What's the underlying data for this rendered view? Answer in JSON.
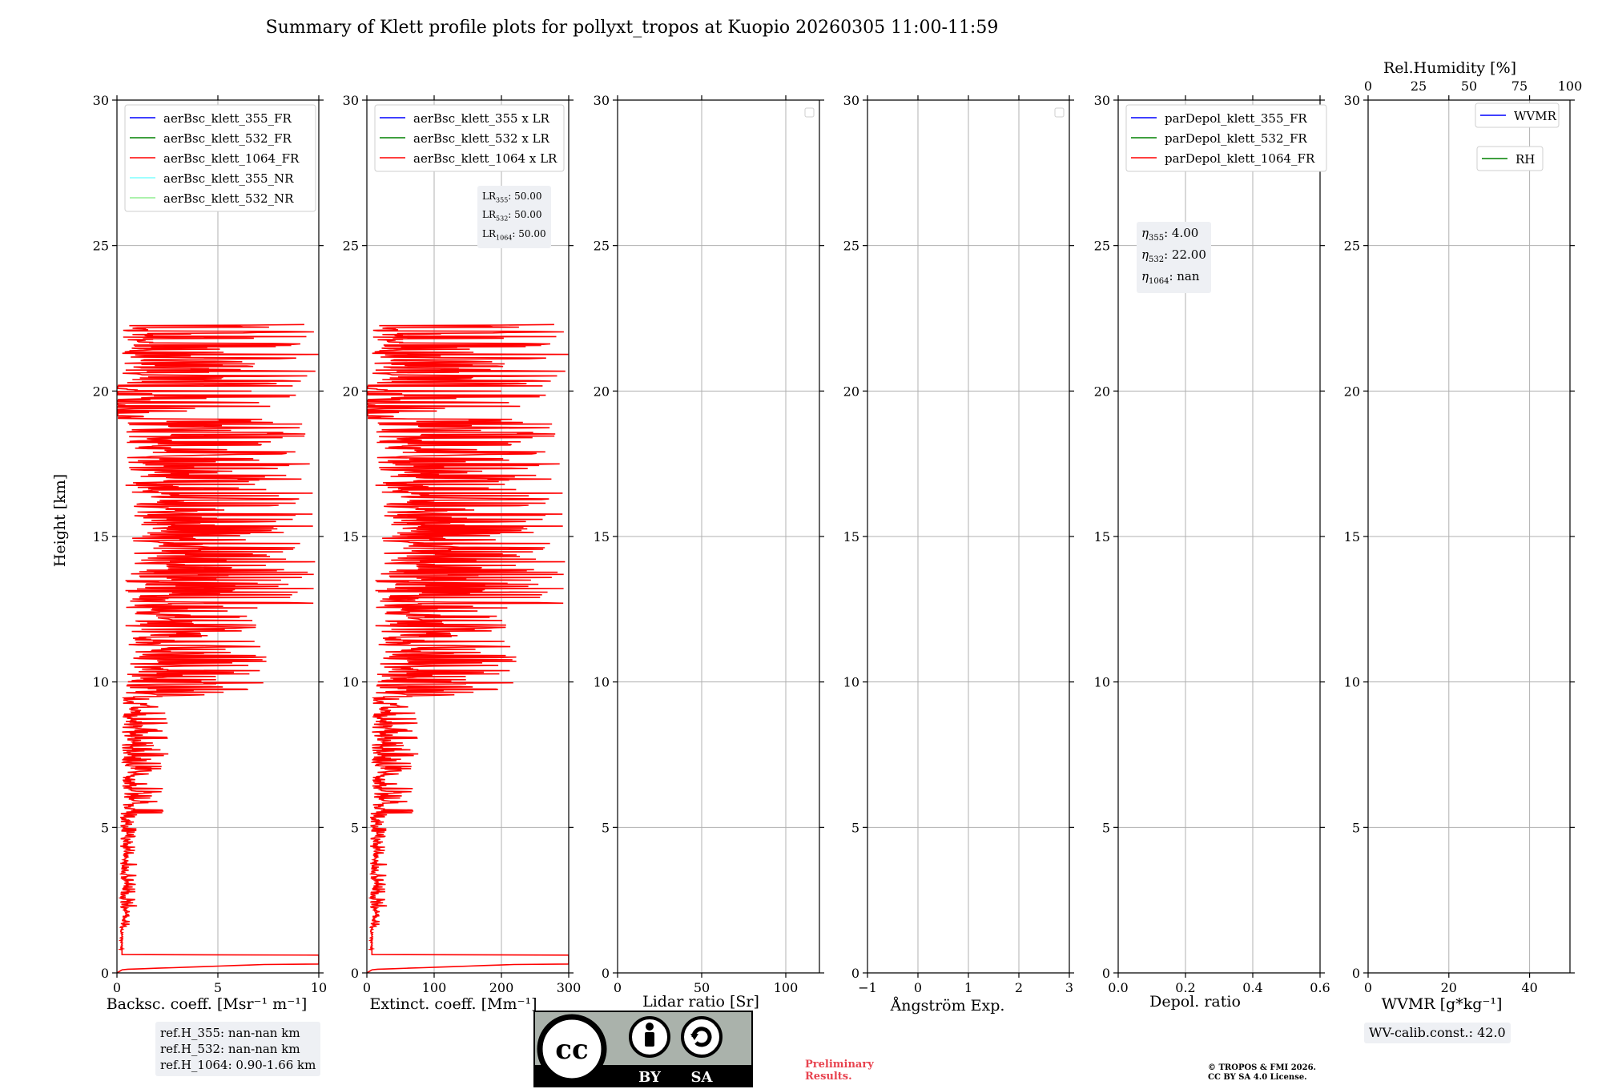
{
  "title": "Summary of Klett profile plots for pollyxt_tropos at Kuopio 20260305 11:00-11:59",
  "y_axis_label": "Height [km]",
  "chart_data": [
    {
      "type": "line",
      "xlabel": "Backsc. coeff. [Msr⁻¹ m⁻¹]",
      "xlim": [
        0,
        10
      ],
      "xticks": [
        0,
        5,
        10
      ],
      "ylim": [
        0,
        30
      ],
      "yticks": [
        0,
        5,
        10,
        15,
        20,
        25,
        30
      ],
      "legend": [
        "aerBsc_klett_355_FR",
        "aerBsc_klett_532_FR",
        "aerBsc_klett_1064_FR",
        "aerBsc_klett_355_NR",
        "aerBsc_klett_532_NR"
      ],
      "legend_colors": [
        "#0000ff",
        "#008000",
        "#ff0000",
        "#7fffff",
        "#90ee90"
      ],
      "series": [
        {
          "name": "aerBsc_klett_1064_FR",
          "color": "#ff0000",
          "profile": "noisy-backscatter-1064",
          "max_value": 10
        }
      ]
    },
    {
      "type": "line",
      "xlabel": "Extinct. coeff. [Mm⁻¹]",
      "xlim": [
        0,
        300
      ],
      "xticks": [
        0,
        100,
        200,
        300
      ],
      "ylim": [
        0,
        30
      ],
      "yticks": [
        0,
        5,
        10,
        15,
        20,
        25,
        30
      ],
      "legend": [
        "aerBsc_klett_355 x LR",
        "aerBsc_klett_532 x LR",
        "aerBsc_klett_1064 x LR"
      ],
      "legend_colors": [
        "#0000ff",
        "#008000",
        "#ff0000"
      ],
      "series": [
        {
          "name": "aerBsc_klett_1064 x LR",
          "color": "#ff0000",
          "profile": "noisy-extinction-1064",
          "max_value": 300
        }
      ]
    },
    {
      "type": "line",
      "xlabel": "Lidar ratio [Sr]",
      "xlim": [
        0,
        120
      ],
      "xticks": [
        0,
        50,
        100
      ],
      "ylim": [
        0,
        30
      ],
      "yticks": [
        0,
        5,
        10,
        15,
        20,
        25,
        30
      ],
      "legend": [],
      "series": []
    },
    {
      "type": "line",
      "xlabel": "Ångström Exp.",
      "xlim": [
        -1,
        3
      ],
      "xticks": [
        -1,
        0,
        1,
        2,
        3
      ],
      "ylim": [
        0,
        30
      ],
      "yticks": [
        0,
        5,
        10,
        15,
        20,
        25,
        30
      ],
      "legend": [],
      "series": []
    },
    {
      "type": "line",
      "xlabel": "Depol. ratio",
      "xlim": [
        0,
        0.6
      ],
      "xticks": [
        0.0,
        0.2,
        0.4,
        0.6
      ],
      "ylim": [
        0,
        30
      ],
      "yticks": [
        0,
        5,
        10,
        15,
        20,
        25,
        30
      ],
      "legend": [
        "parDepol_klett_355_FR",
        "parDepol_klett_532_FR",
        "parDepol_klett_1064_FR"
      ],
      "legend_colors": [
        "#0000ff",
        "#008000",
        "#ff0000"
      ],
      "series": []
    },
    {
      "type": "line",
      "xlabel": "WVMR [g*kg⁻¹]",
      "xlim": [
        0,
        50
      ],
      "xticks": [
        0,
        20,
        40
      ],
      "ylim": [
        0,
        30
      ],
      "yticks": [
        0,
        5,
        10,
        15,
        20,
        25,
        30
      ],
      "top_axis_label": "Rel.Humidity [%]",
      "top_xlim": [
        0,
        100
      ],
      "top_xticks": [
        0,
        25,
        50,
        75,
        100
      ],
      "legend": [
        "WVMR",
        "RH"
      ],
      "legend_colors": [
        "#0000ff",
        "#008000"
      ],
      "series": []
    }
  ],
  "annotations": {
    "lidar_ratios": [
      "LR355: 50.00",
      "LR532: 50.00",
      "LR1064: 50.00"
    ],
    "lr": {
      "l355": "LR",
      "s355": "355",
      "v355": ": 50.00",
      "l532": "LR",
      "s532": "532",
      "v532": ": 50.00",
      "l1064": "LR",
      "s1064": "1064",
      "v1064": ": 50.00"
    },
    "eta": {
      "s355": "355",
      "v355": ": 4.00",
      "s532": "532",
      "v532": ": 22.00",
      "s1064": "1064",
      "v1064": ": nan"
    },
    "ref_heights": [
      "ref.H_355: nan-nan km",
      "ref.H_532: nan-nan km",
      "ref.H_1064: 0.90-1.66 km"
    ],
    "wv_calib": "WV-calib.const.: 42.0",
    "preliminary": [
      "Preliminary",
      "Results."
    ],
    "copyright": [
      "© TROPOS & FMI 2026.",
      "CC BY SA 4.0 License."
    ],
    "cc_badge": {
      "by": "BY",
      "sa": "SA",
      "cc": "cc"
    }
  }
}
